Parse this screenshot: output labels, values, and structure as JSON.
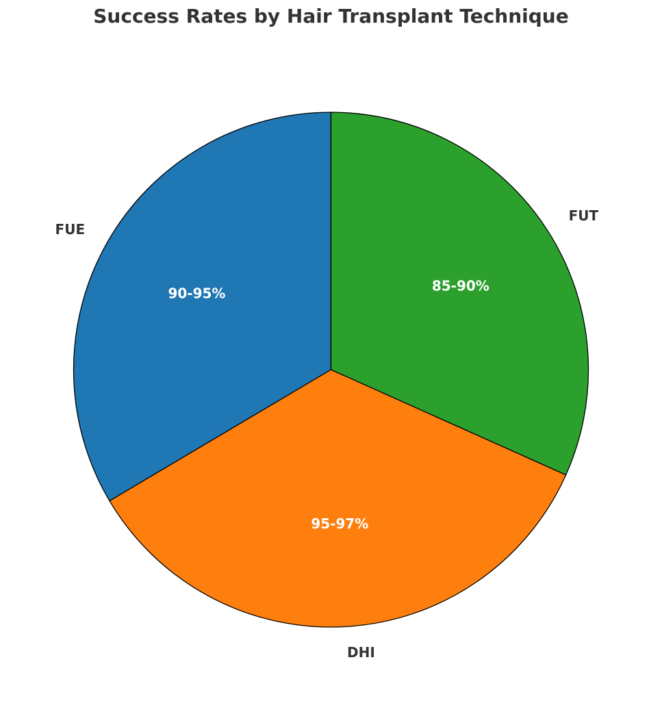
{
  "chart_data": {
    "type": "pie",
    "title": "Success Rates by Hair Transplant Technique",
    "slices": [
      {
        "label": "FUE",
        "value": 92.5,
        "display": "90-95%",
        "color": "#1f77b4"
      },
      {
        "label": "DHI",
        "value": 96,
        "display": "95-97%",
        "color": "#ff7f0e"
      },
      {
        "label": "FUT",
        "value": 87.5,
        "display": "85-90%",
        "color": "#2ca02c"
      }
    ],
    "start_angle_deg": 90,
    "direction": "counterclockwise"
  }
}
